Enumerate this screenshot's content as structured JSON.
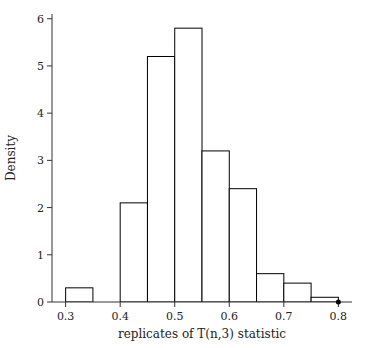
{
  "chart_data": {
    "type": "histogram",
    "bins": [
      0.3,
      0.35,
      0.4,
      0.45,
      0.5,
      0.55,
      0.6,
      0.65,
      0.7,
      0.75,
      0.8
    ],
    "values": [
      0.3,
      0.0,
      2.1,
      5.2,
      5.8,
      3.2,
      2.4,
      0.6,
      0.4,
      0.1
    ],
    "color": "#ffffff",
    "xlim": [
      0.275,
      0.825
    ],
    "ylim": [
      0.0,
      6.1
    ],
    "xticks": [
      0.3,
      0.4,
      0.5,
      0.6,
      0.7,
      0.8
    ],
    "yticks": [
      0,
      1,
      2,
      3,
      4,
      5,
      6
    ],
    "xlabel": "replicates of T(n,3) statistic",
    "ylabel": "Density",
    "dot": {
      "x": 0.8,
      "y": 0.0
    },
    "grid": false
  }
}
